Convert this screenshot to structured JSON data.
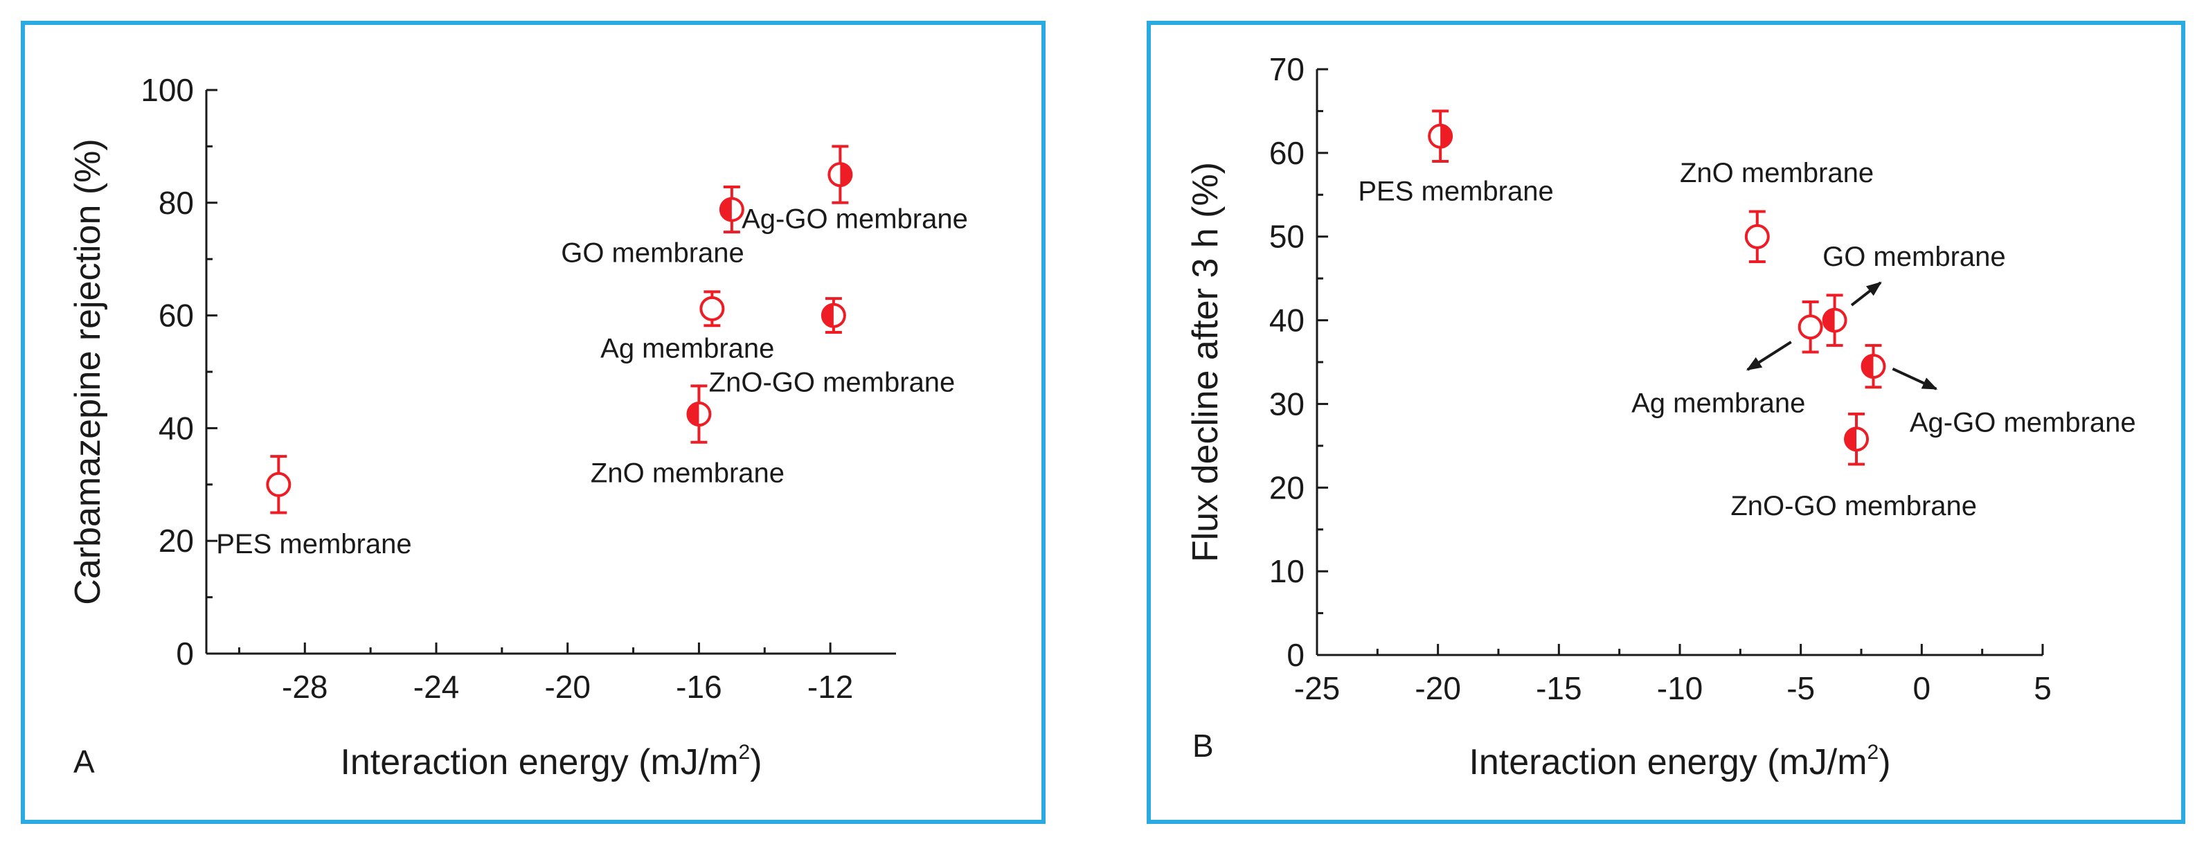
{
  "colors": {
    "frame": "#29aae1",
    "marker": "#ee1c24",
    "axis": "#1a1a1a"
  },
  "chart_data": [
    {
      "type": "scatter",
      "panel_label": "A",
      "xlabel": "Interaction energy (mJ/m",
      "xlabel_sup": "2",
      "xlabel_end": ")",
      "ylabel": "Carbamazepine rejection (%)",
      "xlim": [
        -31,
        -10
      ],
      "ylim": [
        0,
        100
      ],
      "xticks": [
        -28,
        -24,
        -20,
        -16,
        -12
      ],
      "yticks": [
        0,
        20,
        40,
        60,
        80,
        100
      ],
      "x_minor_step": 2,
      "y_minor_step": 10,
      "points": [
        {
          "name": "PES membrane",
          "x": -28.8,
          "y": 30,
          "err": 5,
          "marker": "open",
          "label_x": -30.7,
          "label_y": 17.8,
          "label_anchor": "start"
        },
        {
          "name": "ZnO membrane",
          "x": -16.0,
          "y": 42.5,
          "err": 5,
          "marker": "half-left",
          "label_x": -19.3,
          "label_y": 30.4,
          "label_anchor": "start"
        },
        {
          "name": "Ag membrane",
          "x": -15.6,
          "y": 61.2,
          "err": 3,
          "marker": "open",
          "label_x": -19.0,
          "label_y": 52.5,
          "label_anchor": "start"
        },
        {
          "name": "GO membrane",
          "x": -15.0,
          "y": 78.8,
          "err": 4,
          "marker": "half-left",
          "label_x": -20.2,
          "label_y": 69.5,
          "label_anchor": "start"
        },
        {
          "name": "ZnO-GO membrane",
          "x": -11.9,
          "y": 60,
          "err": 3,
          "marker": "half-left",
          "label_x": -15.7,
          "label_y": 46.5,
          "label_anchor": "start"
        },
        {
          "name": "Ag-GO membrane",
          "x": -11.7,
          "y": 85,
          "err": 5,
          "marker": "half-right",
          "label_x": -14.7,
          "label_y": 75.5,
          "label_anchor": "start"
        }
      ],
      "arrows": []
    },
    {
      "type": "scatter",
      "panel_label": "B",
      "xlabel": "Interaction energy (mJ/m",
      "xlabel_sup": "2",
      "xlabel_end": ")",
      "ylabel": "Flux decline after 3 h (%)",
      "xlim": [
        -25,
        5
      ],
      "ylim": [
        0,
        70
      ],
      "xticks": [
        -25,
        -20,
        -15,
        -10,
        -5,
        0,
        5
      ],
      "yticks": [
        0,
        10,
        20,
        30,
        40,
        50,
        60,
        70
      ],
      "x_minor_step": 2.5,
      "y_minor_step": 5,
      "points": [
        {
          "name": "PES membrane",
          "x": -19.9,
          "y": 62,
          "err": 3,
          "marker": "half-right",
          "label_x": -23.3,
          "label_y": 54.3,
          "label_anchor": "start"
        },
        {
          "name": "ZnO membrane",
          "x": -6.8,
          "y": 50,
          "err": 3,
          "marker": "open",
          "label_x": -10.0,
          "label_y": 56.5,
          "label_anchor": "start"
        },
        {
          "name": "Ag membrane",
          "x": -4.6,
          "y": 39.2,
          "err": 3,
          "marker": "open",
          "label_x": -12.0,
          "label_y": 29.0,
          "label_anchor": "start"
        },
        {
          "name": "GO membrane",
          "x": -3.6,
          "y": 40,
          "err": 3,
          "marker": "half-left",
          "label_x": -4.1,
          "label_y": 46.5,
          "label_anchor": "start"
        },
        {
          "name": "Ag-GO membrane",
          "x": -2.0,
          "y": 34.5,
          "err": 2.5,
          "marker": "half-left",
          "label_x": -0.5,
          "label_y": 26.7,
          "label_anchor": "start"
        },
        {
          "name": "ZnO-GO membrane",
          "x": -2.7,
          "y": 25.8,
          "err": 3,
          "marker": "half-left",
          "label_x": -7.9,
          "label_y": 16.7,
          "label_anchor": "start"
        }
      ],
      "arrows": [
        {
          "from": [
            -5.4,
            37.4
          ],
          "to": [
            -7.2,
            34.1
          ]
        },
        {
          "from": [
            -2.9,
            41.8
          ],
          "to": [
            -1.7,
            44.5
          ]
        },
        {
          "from": [
            -1.2,
            34.2
          ],
          "to": [
            0.6,
            31.8
          ]
        }
      ]
    }
  ]
}
